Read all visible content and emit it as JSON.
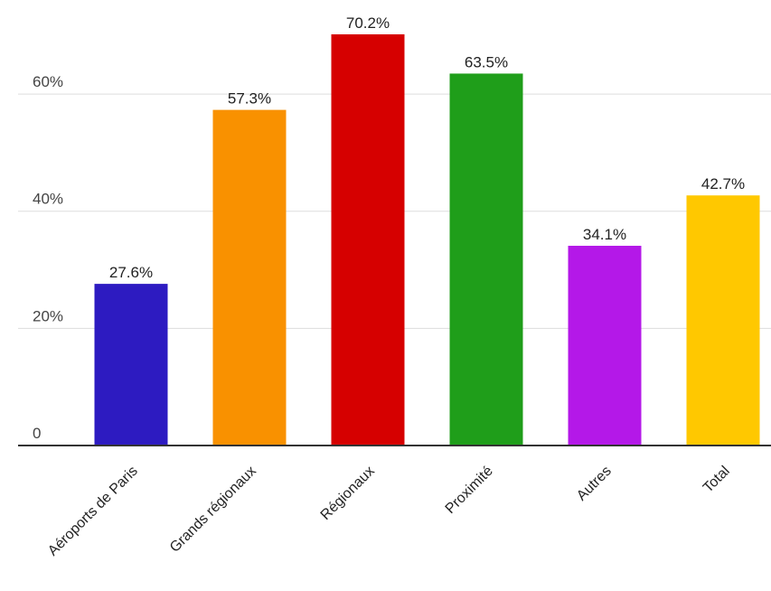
{
  "chart_data": {
    "type": "bar",
    "categories": [
      "Aéroports de Paris",
      "Grands régionaux",
      "Régionaux",
      "Proximité",
      "Autres",
      "Total"
    ],
    "values": [
      27.6,
      57.3,
      70.2,
      63.5,
      34.1,
      42.7
    ],
    "data_labels": [
      "27.6%",
      "57.3%",
      "70.2%",
      "63.5%",
      "34.1%",
      "42.7%"
    ],
    "colors": [
      "#2d1bc1",
      "#f99100",
      "#d60000",
      "#1f9e1a",
      "#b418e8",
      "#ffc800"
    ],
    "y_ticks": [
      {
        "value": 0,
        "label": "0"
      },
      {
        "value": 20,
        "label": "20%"
      },
      {
        "value": 40,
        "label": "40%"
      },
      {
        "value": 60,
        "label": "60%"
      }
    ],
    "ylim": [
      0,
      70.2
    ],
    "grid": true,
    "legend": "none",
    "title": "",
    "xlabel": "",
    "ylabel": ""
  }
}
